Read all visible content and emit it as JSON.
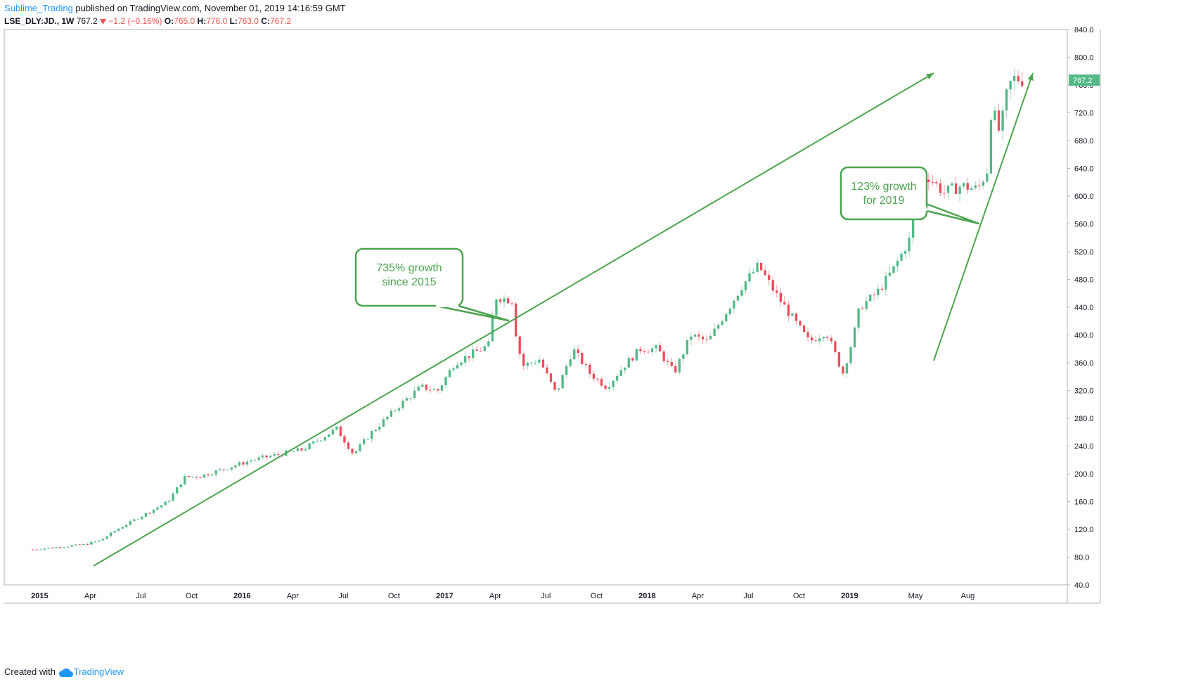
{
  "header": {
    "author": "Sublime_Trading",
    "published": " published on TradingView.com, November 01, 2019 14:16:59 GMT",
    "symbol": "LSE_DLY:JD., 1W",
    "last": "767.2",
    "change": "−1.2 (−0.16%)",
    "o_label": "O:",
    "o_value": "765.0",
    "h_label": "H:",
    "h_value": "776.0",
    "l_label": "L:",
    "l_value": "763.0",
    "c_label": "C:",
    "c_value": "767.2",
    "down_arrow_icon": "triangle-down-icon"
  },
  "footer": {
    "created_with": "Created with",
    "brand": "TradingView",
    "logo_icon": "cloud-logo-icon"
  },
  "annotations": [
    {
      "lines": [
        "735% growth",
        "since 2015"
      ]
    },
    {
      "lines": [
        "123% growth",
        "for 2019"
      ]
    }
  ],
  "colors": {
    "up": "#53b987",
    "down": "#eb4d5c",
    "annotation": "#4ca44f",
    "price_tag": "#53b987",
    "author_link": "#2196f3"
  },
  "chart_data": {
    "type": "candlestick",
    "interval": "1W",
    "symbol": "LSE_DLY:JD.",
    "y_ticks": [
      "840.0",
      "800.0",
      "760.0",
      "720.0",
      "680.0",
      "640.0",
      "600.0",
      "560.0",
      "520.0",
      "480.0",
      "440.0",
      "400.0",
      "360.0",
      "320.0",
      "280.0",
      "240.0",
      "200.0",
      "160.0",
      "120.0",
      "80.0",
      "40.0"
    ],
    "y_range": [
      40,
      840
    ],
    "last_price_tag": "767.2",
    "x_ticks": [
      {
        "label": "2015",
        "bold": true,
        "t": 0.4
      },
      {
        "label": "Apr",
        "bold": false,
        "t": 3.4
      },
      {
        "label": "Jul",
        "bold": false,
        "t": 6.4
      },
      {
        "label": "Oct",
        "bold": false,
        "t": 9.4
      },
      {
        "label": "2016",
        "bold": true,
        "t": 12.4
      },
      {
        "label": "Apr",
        "bold": false,
        "t": 15.4
      },
      {
        "label": "Jul",
        "bold": false,
        "t": 18.4
      },
      {
        "label": "Oct",
        "bold": false,
        "t": 21.4
      },
      {
        "label": "2017",
        "bold": true,
        "t": 24.4
      },
      {
        "label": "Apr",
        "bold": false,
        "t": 27.4
      },
      {
        "label": "Jul",
        "bold": false,
        "t": 30.4
      },
      {
        "label": "Oct",
        "bold": false,
        "t": 33.4
      },
      {
        "label": "2018",
        "bold": true,
        "t": 36.4
      },
      {
        "label": "Apr",
        "bold": false,
        "t": 39.4
      },
      {
        "label": "Jul",
        "bold": false,
        "t": 42.4
      },
      {
        "label": "Oct",
        "bold": false,
        "t": 45.4
      },
      {
        "label": "2019",
        "bold": true,
        "t": 48.4
      },
      {
        "label": "May",
        "bold": false,
        "t": 52.3
      },
      {
        "label": "Aug",
        "bold": false,
        "t": 55.4
      }
    ],
    "t_range": [
      -1.7,
      61.3
    ],
    "anchors": [
      [
        0,
        91
      ],
      [
        3,
        98
      ],
      [
        4,
        104
      ],
      [
        5,
        120
      ],
      [
        8,
        160
      ],
      [
        9,
        195
      ],
      [
        10,
        197
      ],
      [
        13,
        220
      ],
      [
        16,
        235
      ],
      [
        17,
        250
      ],
      [
        18,
        265
      ],
      [
        19,
        228
      ],
      [
        20,
        258
      ],
      [
        22,
        305
      ],
      [
        23,
        325
      ],
      [
        24,
        320
      ],
      [
        25,
        360
      ],
      [
        27,
        385
      ],
      [
        27.4,
        455
      ],
      [
        28.4,
        450
      ],
      [
        28.6,
        405
      ],
      [
        29,
        355
      ],
      [
        30,
        365
      ],
      [
        31,
        315
      ],
      [
        32,
        380
      ],
      [
        33,
        345
      ],
      [
        34,
        325
      ],
      [
        35,
        355
      ],
      [
        36,
        380
      ],
      [
        37,
        380
      ],
      [
        38,
        345
      ],
      [
        39,
        400
      ],
      [
        40,
        390
      ],
      [
        41,
        430
      ],
      [
        42,
        470
      ],
      [
        43,
        500
      ],
      [
        44,
        460
      ],
      [
        45,
        425
      ],
      [
        46,
        390
      ],
      [
        47,
        405
      ],
      [
        48,
        345
      ],
      [
        48.6,
        395
      ],
      [
        49,
        440
      ],
      [
        50,
        460
      ],
      [
        51,
        495
      ],
      [
        52,
        540
      ],
      [
        52.4,
        620
      ],
      [
        53,
        630
      ],
      [
        54,
        605
      ],
      [
        55,
        615
      ],
      [
        56,
        610
      ],
      [
        56.6,
        640
      ],
      [
        56.8,
        730
      ],
      [
        57.3,
        690
      ],
      [
        57.8,
        758
      ],
      [
        58.2,
        770
      ],
      [
        58.8,
        767
      ]
    ],
    "candle_color_rule": "green when close > open, red when close < open"
  }
}
